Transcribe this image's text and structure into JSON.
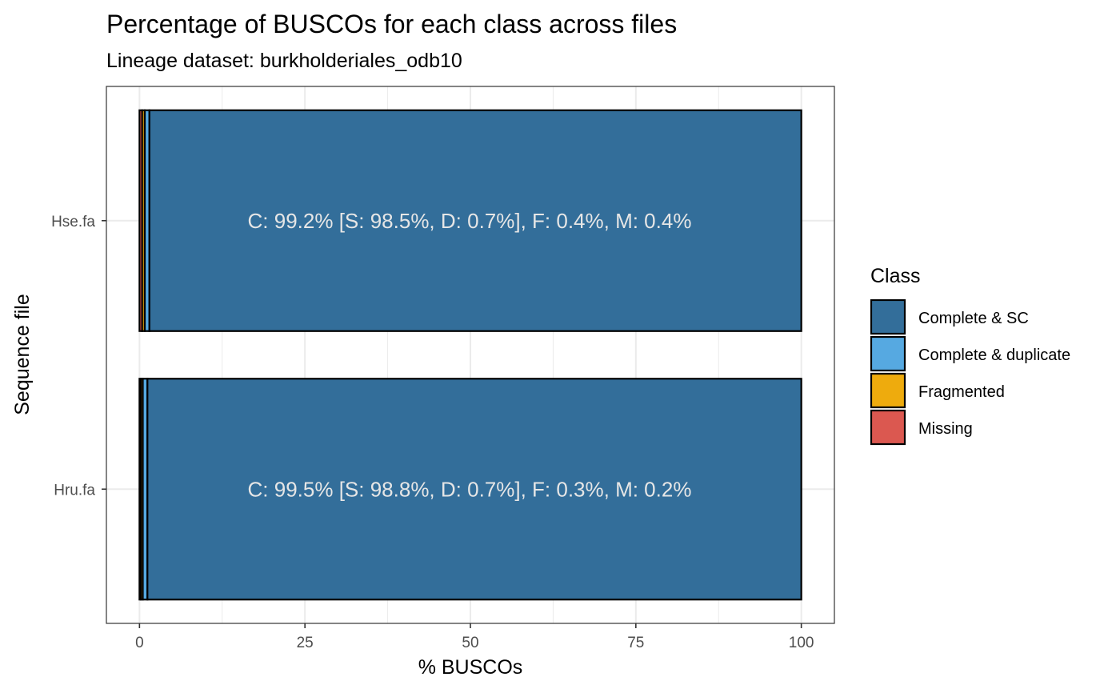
{
  "chart_data": {
    "type": "bar",
    "orientation": "horizontal",
    "stacked": true,
    "title": "Percentage of BUSCOs for each class across files",
    "subtitle": "Lineage dataset: burkholderiales_odb10",
    "xlabel": "% BUSCOs",
    "ylabel": "Sequence file",
    "xlim": [
      -5,
      105
    ],
    "xticks": [
      0,
      25,
      50,
      75,
      100
    ],
    "grid": true,
    "legend_title": "Class",
    "legend_position": "right",
    "categories": [
      "Hse.fa",
      "Hru.fa"
    ],
    "stack_order": [
      "Missing",
      "Fragmented",
      "Complete & duplicate",
      "Complete & SC"
    ],
    "series": [
      {
        "name": "Complete & SC",
        "color": "#336E9A",
        "values": [
          98.5,
          98.8
        ]
      },
      {
        "name": "Complete & duplicate",
        "color": "#56A9E1",
        "values": [
          0.7,
          0.7
        ]
      },
      {
        "name": "Fragmented",
        "color": "#EEAB0D",
        "values": [
          0.4,
          0.3
        ]
      },
      {
        "name": "Missing",
        "color": "#DB5850",
        "values": [
          0.4,
          0.2
        ]
      }
    ],
    "bar_labels": [
      "C: 99.2% [S: 98.5%, D: 0.7%], F: 0.4%, M: 0.4%",
      "C: 99.5% [S: 98.8%, D: 0.7%], F: 0.3%, M: 0.2%"
    ]
  }
}
